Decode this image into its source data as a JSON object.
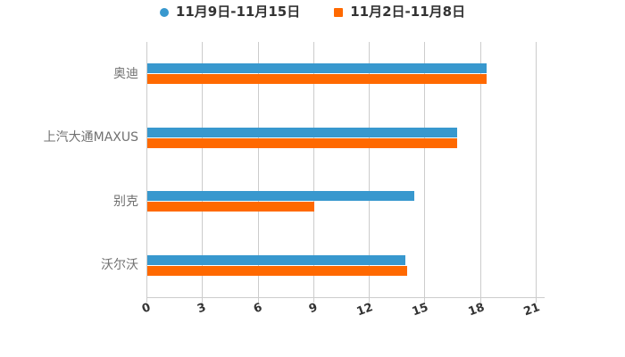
{
  "legend": [
    {
      "label": "11月9日-11月15日",
      "color": "#3898ce",
      "shape": "circle"
    },
    {
      "label": "11月2日-11月8日",
      "color": "#ff6900",
      "shape": "square"
    }
  ],
  "chart_data": {
    "type": "bar",
    "orientation": "horizontal",
    "title": "",
    "xlabel": "",
    "ylabel": "",
    "categories": [
      "奥迪",
      "上汽大通MAXUS",
      "别克",
      "沃尔沃"
    ],
    "series": [
      {
        "name": "11月9日-11月15日",
        "color": "#3898ce",
        "values": [
          18.3,
          16.7,
          14.4,
          13.9
        ]
      },
      {
        "name": "11月2日-11月8日",
        "color": "#ff6900",
        "values": [
          18.3,
          16.7,
          9.0,
          14.0
        ]
      }
    ],
    "xlim": [
      0,
      21
    ],
    "xticks": [
      "0",
      "3",
      "6",
      "9",
      "12",
      "15",
      "18",
      "21"
    ],
    "grid": true,
    "legend_position": "top",
    "colors": {
      "gridline": "#cccccc",
      "axis_text": "#333333",
      "category_text": "#717171"
    }
  }
}
